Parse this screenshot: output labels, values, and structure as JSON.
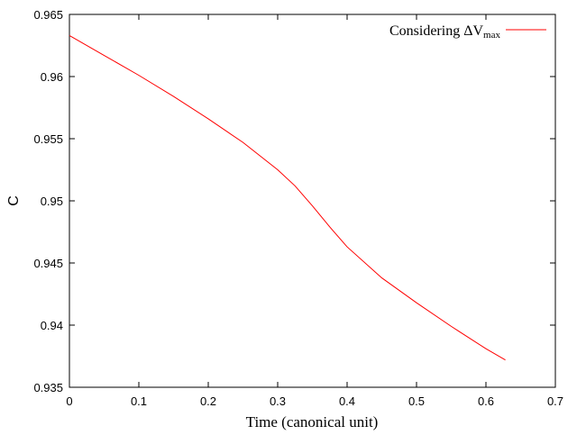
{
  "chart_data": {
    "type": "line",
    "title": "",
    "xlabel": "Time (canonical unit)",
    "ylabel": "C",
    "xlim": [
      0,
      0.7
    ],
    "ylim": [
      0.935,
      0.965
    ],
    "x_ticks": [
      0,
      0.1,
      0.2,
      0.3,
      0.4,
      0.5,
      0.6,
      0.7
    ],
    "x_tick_labels": [
      "0",
      "0.1",
      "0.2",
      "0.3",
      "0.4",
      "0.5",
      "0.6",
      "0.7"
    ],
    "y_ticks": [
      0.935,
      0.94,
      0.945,
      0.95,
      0.955,
      0.96,
      0.965
    ],
    "y_tick_labels": [
      "0.935",
      "0.94",
      "0.945",
      "0.95",
      "0.955",
      "0.96",
      "0.965"
    ],
    "grid": false,
    "legend_position": "top-right",
    "series": [
      {
        "name": "Considering ΔV_max",
        "legend_main": "Considering ΔV",
        "legend_sub": "max",
        "color": "#ff0000",
        "x": [
          0,
          0.05,
          0.1,
          0.15,
          0.2,
          0.25,
          0.3,
          0.325,
          0.35,
          0.375,
          0.4,
          0.45,
          0.5,
          0.55,
          0.6,
          0.628
        ],
        "y": [
          0.9633,
          0.9617,
          0.9601,
          0.9584,
          0.9566,
          0.9547,
          0.9525,
          0.9512,
          0.9496,
          0.9479,
          0.9463,
          0.9438,
          0.9418,
          0.9399,
          0.9381,
          0.9372
        ]
      }
    ]
  }
}
